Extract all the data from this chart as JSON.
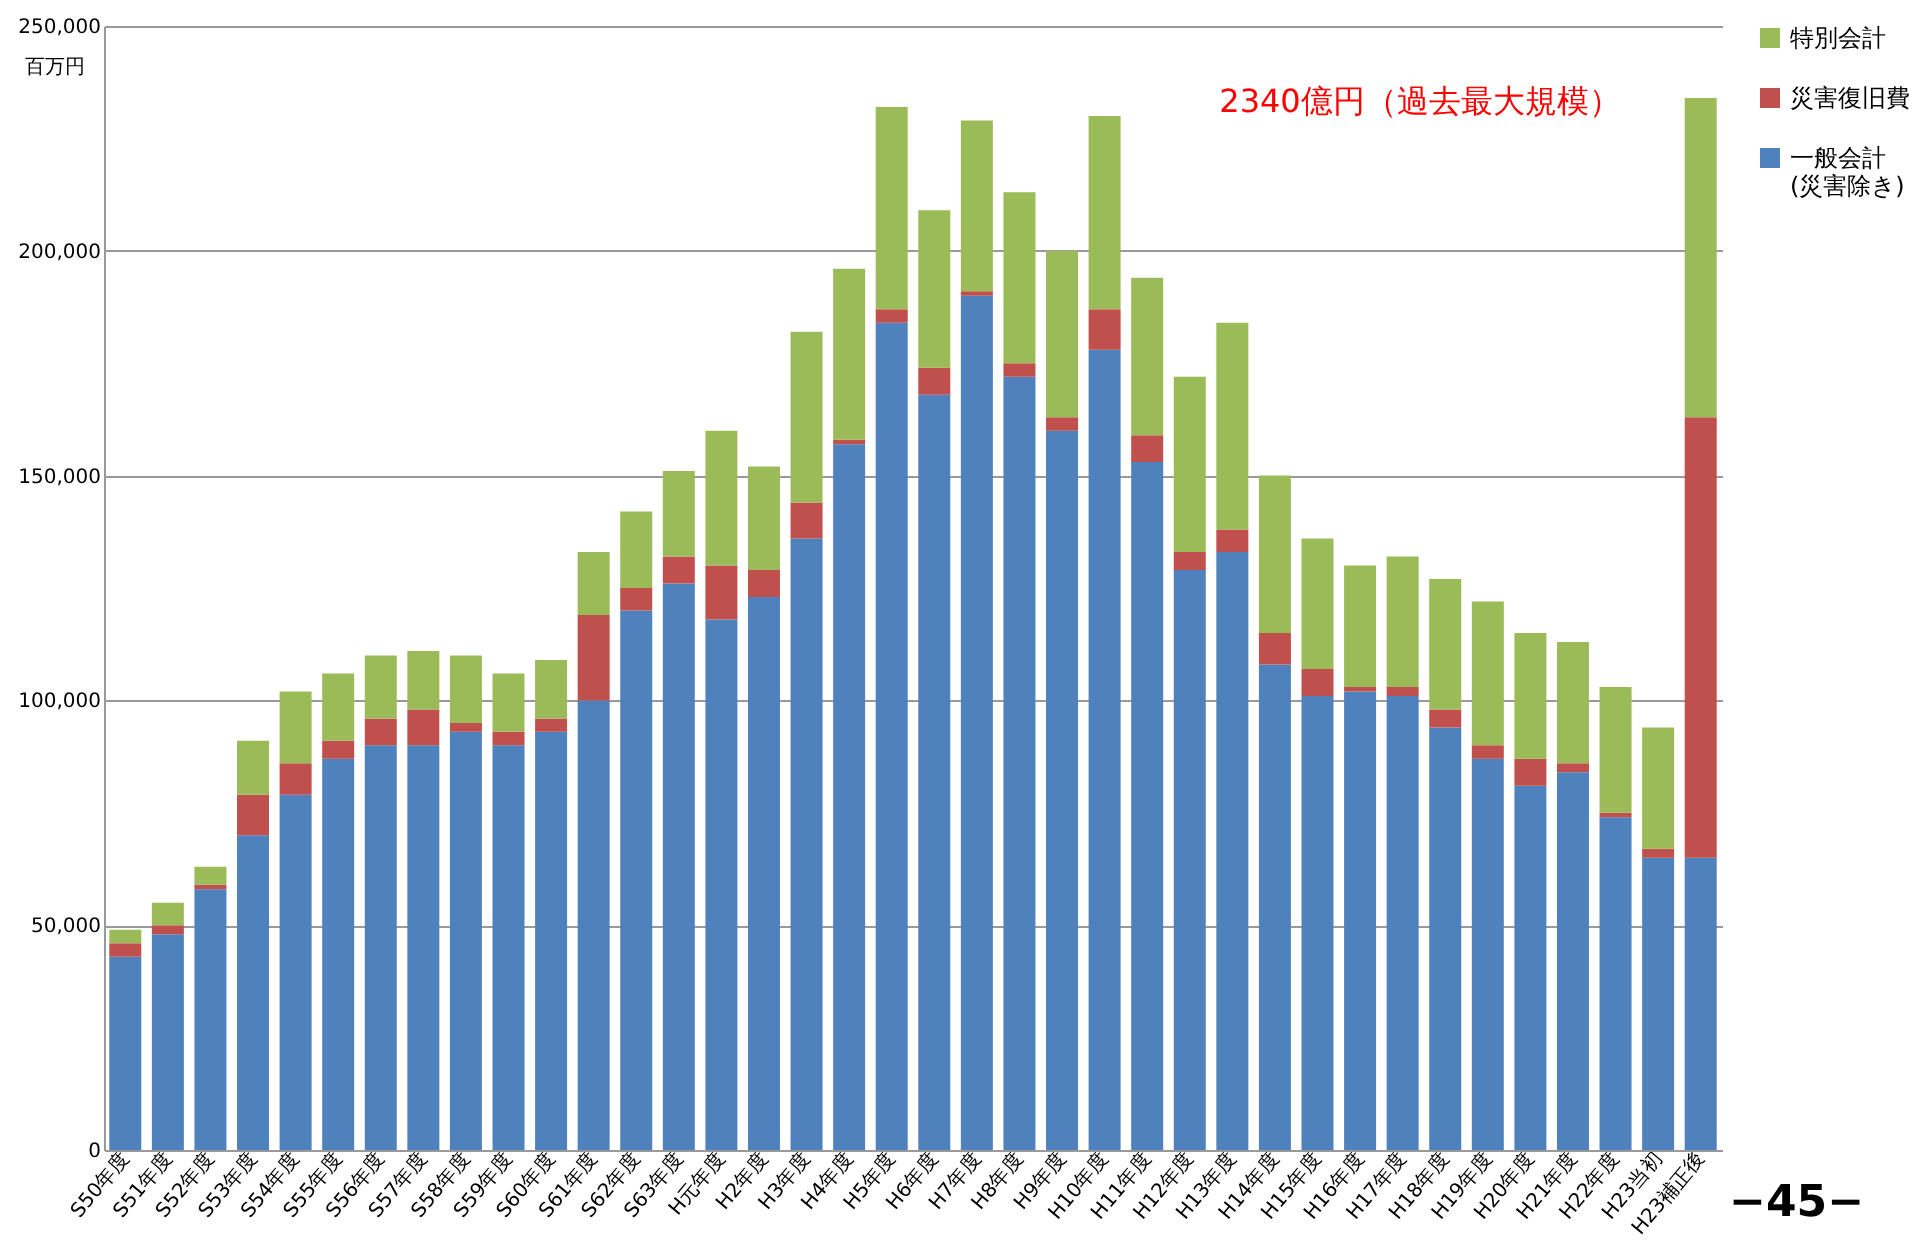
{
  "chart_data": {
    "type": "bar",
    "stacked": true,
    "ylabel": "百万円",
    "categories": [
      "S50年度",
      "S51年度",
      "S52年度",
      "S53年度",
      "S54年度",
      "S55年度",
      "S56年度",
      "S57年度",
      "S58年度",
      "S59年度",
      "S60年度",
      "S61年度",
      "S62年度",
      "S63年度",
      "H元年度",
      "H2年度",
      "H3年度",
      "H4年度",
      "H5年度",
      "H6年度",
      "H7年度",
      "H8年度",
      "H9年度",
      "H10年度",
      "H11年度",
      "H12年度",
      "H13年度",
      "H14年度",
      "H15年度",
      "H16年度",
      "H17年度",
      "H18年度",
      "H19年度",
      "H20年度",
      "H21年度",
      "H22年度",
      "H23当初",
      "H23補正後"
    ],
    "series": [
      {
        "name": "一般会計\n(災害除き)",
        "color": "#4f81bd",
        "values": [
          43000,
          48000,
          58000,
          70000,
          79000,
          87000,
          90000,
          90000,
          93000,
          90000,
          93000,
          100000,
          120000,
          126000,
          118000,
          123000,
          136000,
          157000,
          184000,
          168000,
          190000,
          172000,
          160000,
          178000,
          153000,
          129000,
          133000,
          108000,
          101000,
          102000,
          101000,
          94000,
          87000,
          81000,
          84000,
          74000,
          65000,
          65000
        ]
      },
      {
        "name": "災害復旧費",
        "color": "#c0504d",
        "values": [
          3000,
          2000,
          1000,
          9000,
          7000,
          4000,
          6000,
          8000,
          2000,
          3000,
          3000,
          19000,
          5000,
          6000,
          12000,
          6000,
          8000,
          1000,
          3000,
          6000,
          1000,
          3000,
          3000,
          9000,
          6000,
          4000,
          5000,
          7000,
          6000,
          1000,
          2000,
          4000,
          3000,
          6000,
          2000,
          1000,
          2000,
          98000
        ]
      },
      {
        "name": "特別会計",
        "color": "#9bbb59",
        "values": [
          3000,
          5000,
          4000,
          12000,
          16000,
          15000,
          14000,
          13000,
          15000,
          13000,
          13000,
          14000,
          17000,
          19000,
          30000,
          23000,
          38000,
          38000,
          45000,
          35000,
          38000,
          38000,
          37000,
          43000,
          35000,
          39000,
          46000,
          35000,
          29000,
          27000,
          29000,
          29000,
          32000,
          28000,
          27000,
          28000,
          27000,
          71000
        ]
      }
    ],
    "ylim": [
      0,
      250000
    ],
    "yticks": [
      0,
      {
        "value": 50000,
        "label": "50,000"
      },
      {
        "value": 100000,
        "label": "100,000"
      },
      {
        "value": 150000,
        "label": "150,000"
      },
      {
        "value": 200000,
        "label": "200,000"
      },
      {
        "value": 250000,
        "label": "250,000"
      }
    ],
    "grid": "y",
    "legend": "right",
    "annotations": [
      {
        "text": "2340億円（過去最大規模）",
        "x": "H23補正後",
        "y": 234000
      },
      "−45−"
    ]
  }
}
